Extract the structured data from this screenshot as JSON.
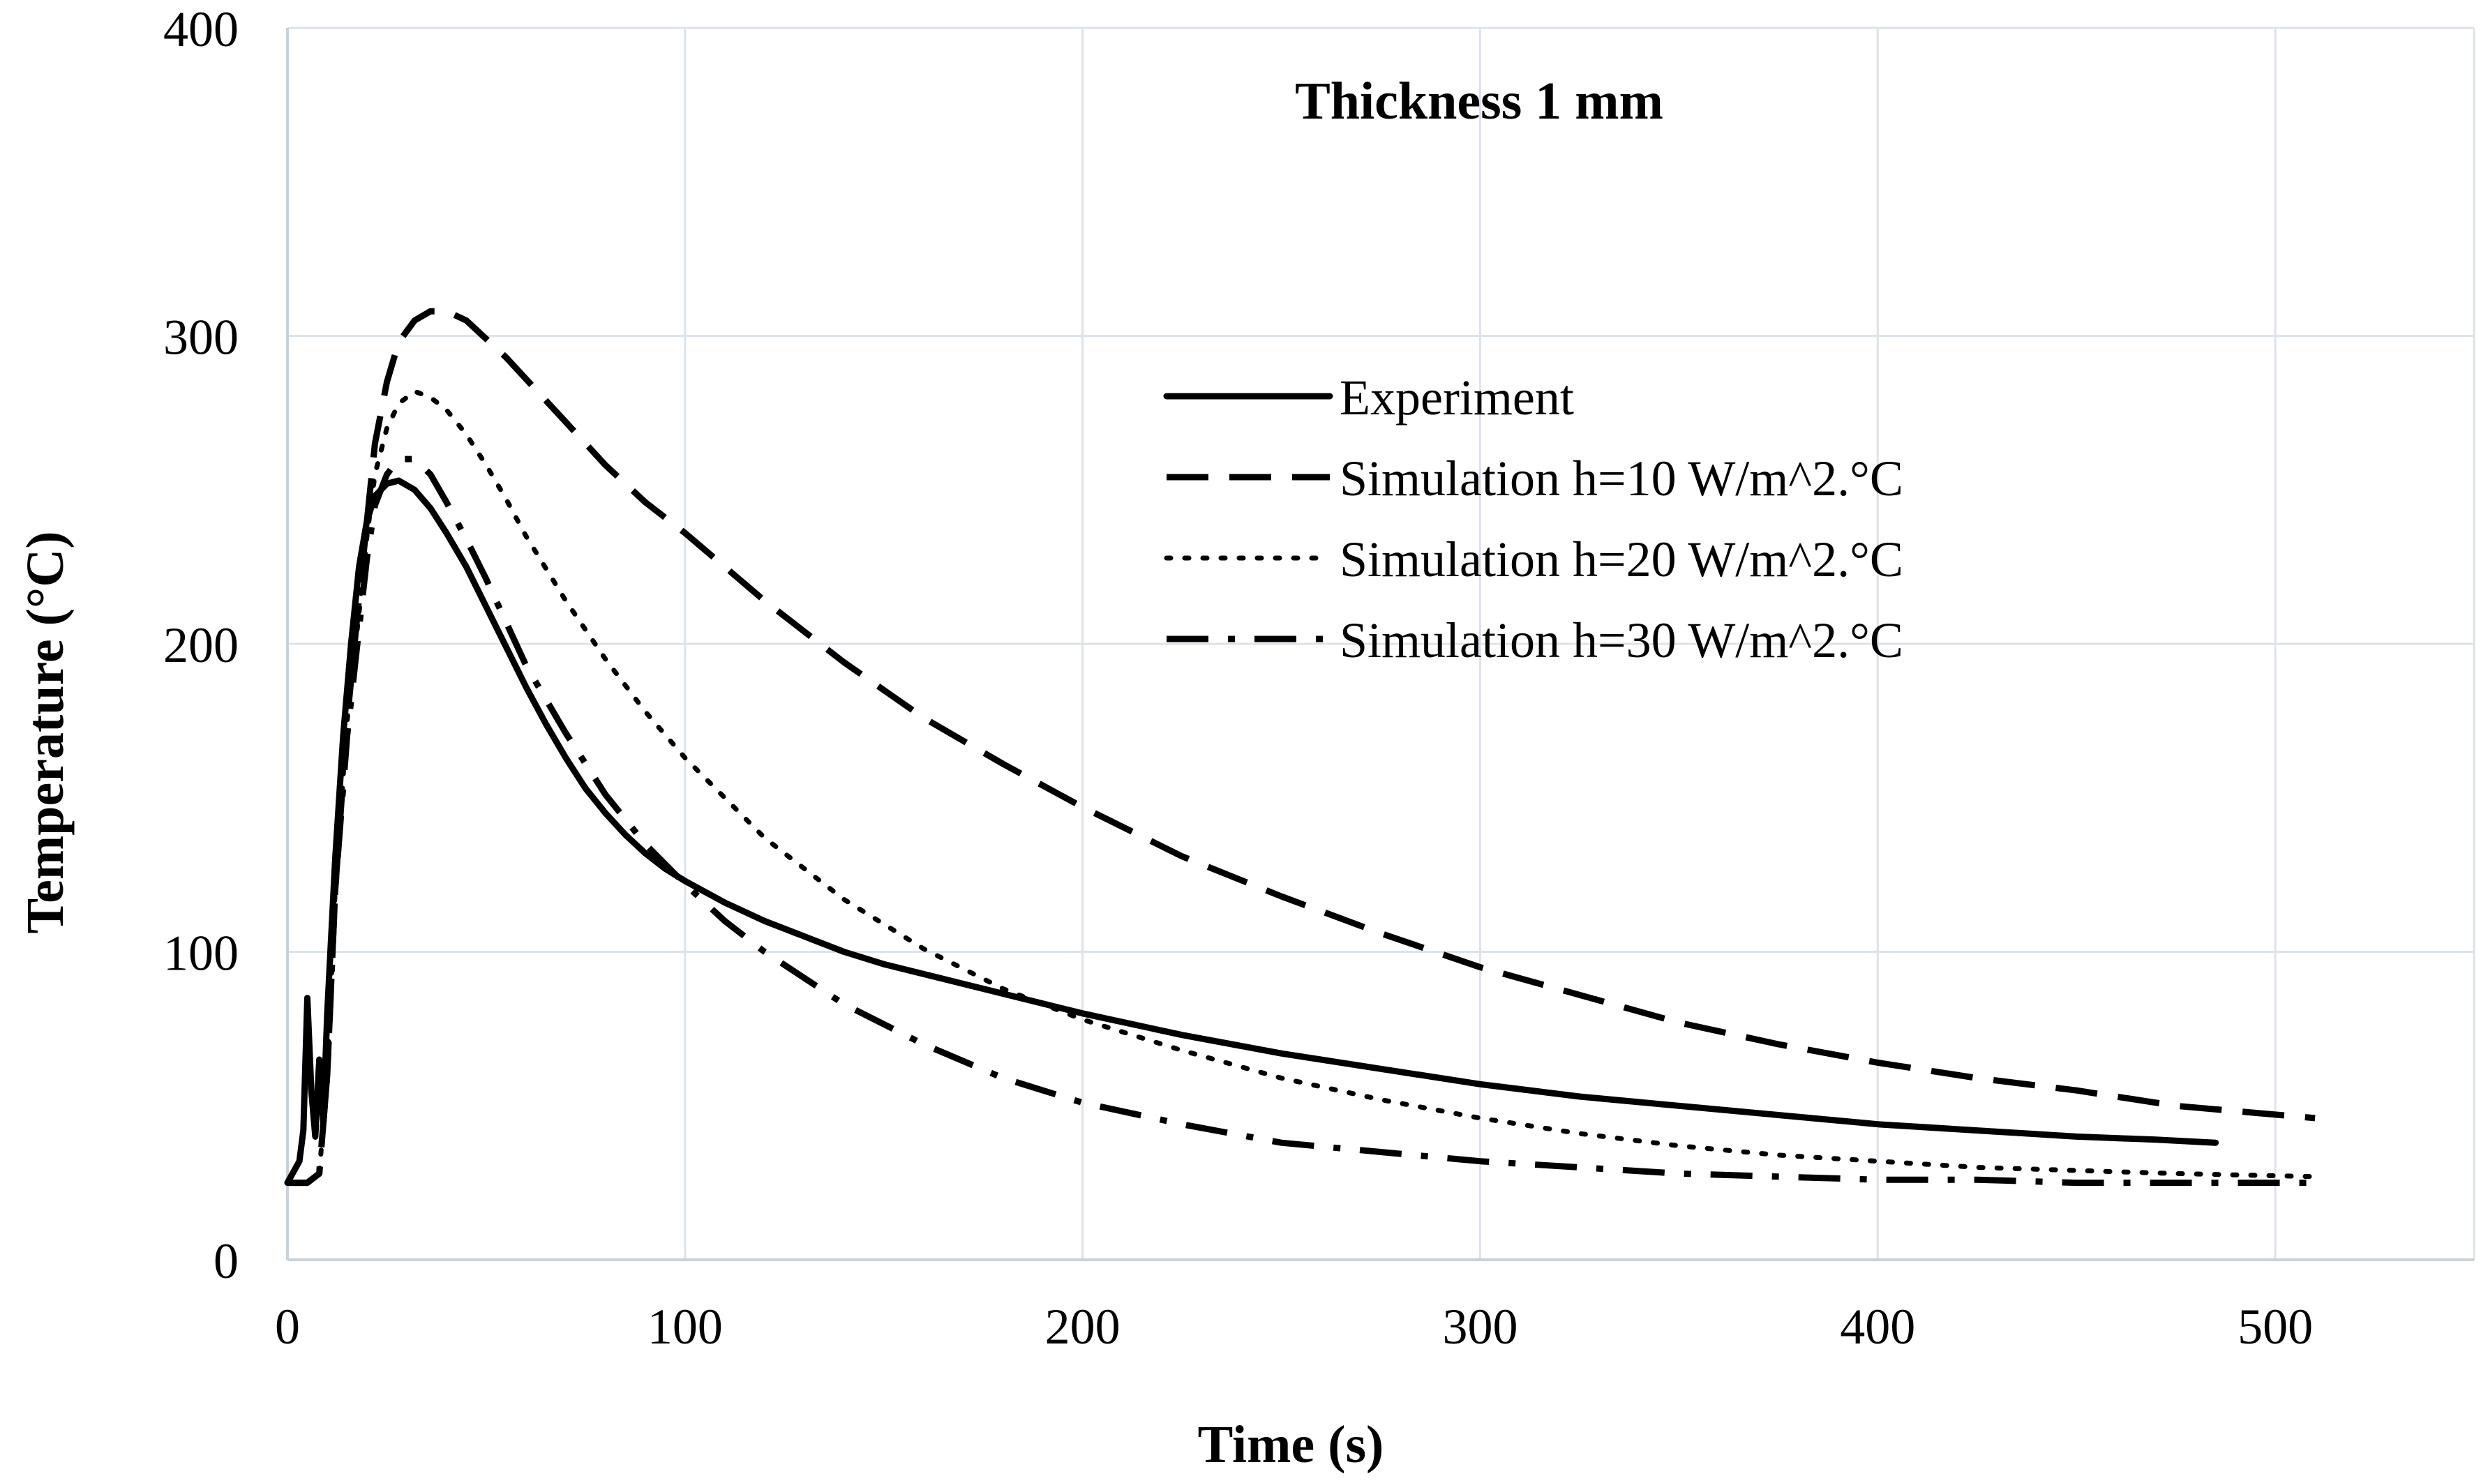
{
  "chart_data": {
    "type": "line",
    "title": "Thickness 1 mm",
    "xlabel": "Time (s)",
    "ylabel": "Temperature (°C)",
    "xlim": [
      0,
      550
    ],
    "ylim": [
      0,
      400
    ],
    "xticks": [
      0,
      100,
      200,
      300,
      400,
      500
    ],
    "yticks": [
      0,
      100,
      200,
      300,
      400
    ],
    "x_tick_labels": [
      "0",
      "100",
      "200",
      "300",
      "400",
      "500"
    ],
    "y_tick_labels": [
      "0",
      "100",
      "200",
      "300",
      "400"
    ],
    "grid": true,
    "legend_position": "top-right",
    "series": [
      {
        "name": "Experiment",
        "style": "solid",
        "color": "#000000",
        "points": [
          [
            0,
            25
          ],
          [
            3,
            32
          ],
          [
            4,
            42
          ],
          [
            5,
            85
          ],
          [
            6,
            55
          ],
          [
            7,
            40
          ],
          [
            8,
            65
          ],
          [
            9,
            45
          ],
          [
            10,
            80
          ],
          [
            12,
            130
          ],
          [
            14,
            170
          ],
          [
            16,
            200
          ],
          [
            18,
            225
          ],
          [
            20,
            240
          ],
          [
            22,
            248
          ],
          [
            25,
            252
          ],
          [
            28,
            253
          ],
          [
            32,
            250
          ],
          [
            36,
            244
          ],
          [
            40,
            236
          ],
          [
            45,
            225
          ],
          [
            50,
            212
          ],
          [
            55,
            199
          ],
          [
            60,
            186
          ],
          [
            65,
            174
          ],
          [
            70,
            163
          ],
          [
            75,
            153
          ],
          [
            80,
            145
          ],
          [
            85,
            138
          ],
          [
            90,
            132
          ],
          [
            95,
            127
          ],
          [
            100,
            123
          ],
          [
            110,
            116
          ],
          [
            120,
            110
          ],
          [
            130,
            105
          ],
          [
            140,
            100
          ],
          [
            150,
            96
          ],
          [
            175,
            88
          ],
          [
            200,
            80
          ],
          [
            225,
            73
          ],
          [
            250,
            67
          ],
          [
            275,
            62
          ],
          [
            300,
            57
          ],
          [
            325,
            53
          ],
          [
            350,
            50
          ],
          [
            375,
            47
          ],
          [
            400,
            44
          ],
          [
            425,
            42
          ],
          [
            450,
            40
          ],
          [
            470,
            39
          ],
          [
            485,
            38
          ]
        ]
      },
      {
        "name": "Simulation h=10 W/m^2.°C",
        "style": "dashed",
        "color": "#000000",
        "points": [
          [
            0,
            25
          ],
          [
            5,
            25
          ],
          [
            8,
            28
          ],
          [
            10,
            60
          ],
          [
            12,
            120
          ],
          [
            15,
            175
          ],
          [
            18,
            215
          ],
          [
            20,
            240
          ],
          [
            22,
            265
          ],
          [
            25,
            285
          ],
          [
            28,
            298
          ],
          [
            32,
            305
          ],
          [
            36,
            308
          ],
          [
            40,
            308
          ],
          [
            45,
            305
          ],
          [
            50,
            299
          ],
          [
            55,
            293
          ],
          [
            60,
            286
          ],
          [
            70,
            272
          ],
          [
            80,
            258
          ],
          [
            90,
            246
          ],
          [
            100,
            236
          ],
          [
            120,
            214
          ],
          [
            140,
            194
          ],
          [
            160,
            176
          ],
          [
            180,
            161
          ],
          [
            200,
            147
          ],
          [
            225,
            131
          ],
          [
            250,
            118
          ],
          [
            275,
            106
          ],
          [
            300,
            95
          ],
          [
            325,
            86
          ],
          [
            350,
            77
          ],
          [
            375,
            70
          ],
          [
            400,
            64
          ],
          [
            425,
            59
          ],
          [
            450,
            55
          ],
          [
            475,
            50
          ],
          [
            510,
            46
          ]
        ]
      },
      {
        "name": "Simulation h=20 W/m^2.°C",
        "style": "dotted",
        "color": "#000000",
        "points": [
          [
            0,
            25
          ],
          [
            5,
            25
          ],
          [
            8,
            28
          ],
          [
            10,
            60
          ],
          [
            12,
            120
          ],
          [
            15,
            175
          ],
          [
            18,
            210
          ],
          [
            20,
            235
          ],
          [
            22,
            255
          ],
          [
            25,
            270
          ],
          [
            28,
            278
          ],
          [
            32,
            282
          ],
          [
            36,
            280
          ],
          [
            40,
            276
          ],
          [
            45,
            268
          ],
          [
            50,
            258
          ],
          [
            55,
            247
          ],
          [
            60,
            235
          ],
          [
            70,
            214
          ],
          [
            80,
            195
          ],
          [
            90,
            178
          ],
          [
            100,
            163
          ],
          [
            120,
            137
          ],
          [
            140,
            117
          ],
          [
            160,
            101
          ],
          [
            180,
            88
          ],
          [
            200,
            78
          ],
          [
            225,
            68
          ],
          [
            250,
            59
          ],
          [
            275,
            52
          ],
          [
            300,
            46
          ],
          [
            325,
            41
          ],
          [
            350,
            37
          ],
          [
            375,
            34
          ],
          [
            400,
            32
          ],
          [
            425,
            30
          ],
          [
            450,
            29
          ],
          [
            475,
            28
          ],
          [
            510,
            27
          ]
        ]
      },
      {
        "name": "Simulation h=30 W/m^2.°C",
        "style": "dashdot",
        "color": "#000000",
        "points": [
          [
            0,
            25
          ],
          [
            5,
            25
          ],
          [
            8,
            28
          ],
          [
            10,
            60
          ],
          [
            12,
            120
          ],
          [
            15,
            170
          ],
          [
            18,
            205
          ],
          [
            20,
            228
          ],
          [
            22,
            245
          ],
          [
            25,
            255
          ],
          [
            28,
            260
          ],
          [
            32,
            260
          ],
          [
            36,
            255
          ],
          [
            40,
            246
          ],
          [
            45,
            234
          ],
          [
            50,
            221
          ],
          [
            55,
            207
          ],
          [
            60,
            193
          ],
          [
            70,
            171
          ],
          [
            80,
            151
          ],
          [
            90,
            135
          ],
          [
            100,
            122
          ],
          [
            110,
            110
          ],
          [
            120,
            100
          ],
          [
            140,
            83
          ],
          [
            160,
            70
          ],
          [
            180,
            59
          ],
          [
            200,
            51
          ],
          [
            225,
            44
          ],
          [
            250,
            38
          ],
          [
            275,
            35
          ],
          [
            300,
            32
          ],
          [
            325,
            30
          ],
          [
            350,
            28
          ],
          [
            375,
            27
          ],
          [
            400,
            26
          ],
          [
            425,
            26
          ],
          [
            450,
            25
          ],
          [
            475,
            25
          ],
          [
            510,
            25
          ]
        ]
      }
    ]
  }
}
